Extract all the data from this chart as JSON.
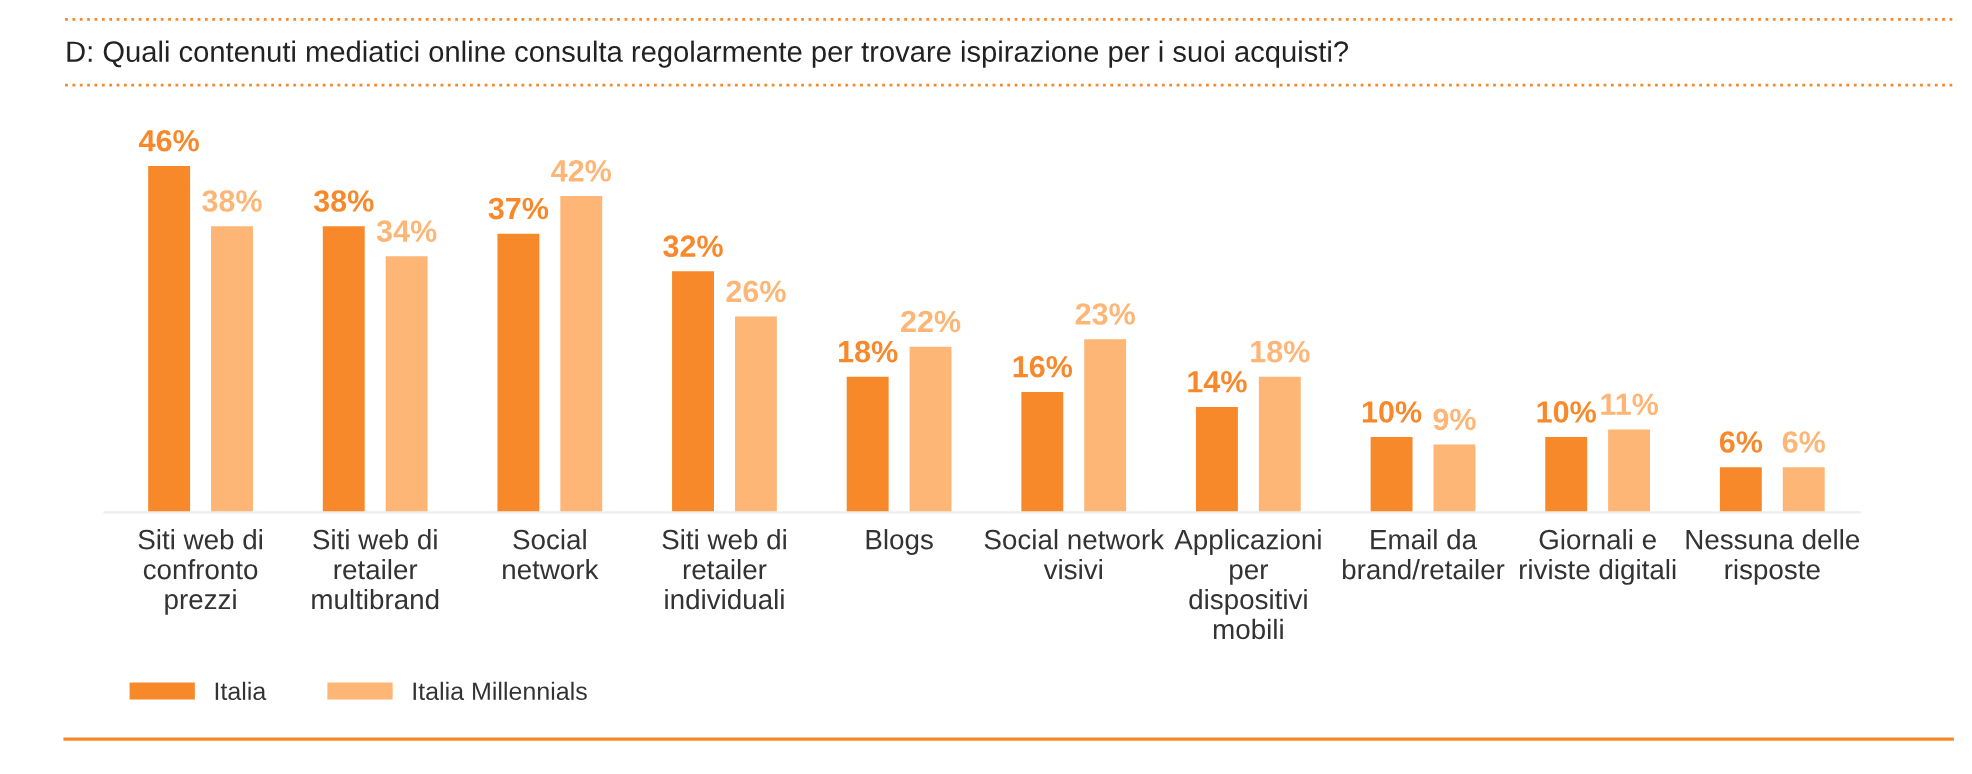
{
  "chart_data": {
    "type": "bar",
    "title": "D: Quali contenuti mediatici online consulta regolarmente per trovare ispirazione per i suoi acquisti?",
    "categories": [
      "Siti web di\nconfronto\nprezzi",
      "Siti web di\nretailer\nmultibrand",
      "Social\nnetwork",
      "Siti web di\nretailer\nindividuali",
      "Blogs",
      "Social network\nvisivi",
      "Applicazioni\nper\ndispositivi\nmobili",
      "Email da\nbrand/retailer",
      "Giornali e\nriviste digitali",
      "Nessuna delle\nrisposte"
    ],
    "series": [
      {
        "name": "Italia",
        "color": "#f7892b",
        "values": [
          46,
          38,
          37,
          32,
          18,
          16,
          14,
          10,
          10,
          6
        ],
        "value_labels": [
          "46%",
          "38%",
          "37%",
          "32%",
          "18%",
          "16%",
          "14%",
          "10%",
          "10%",
          "6%"
        ]
      },
      {
        "name": "Italia Millennials",
        "color": "#fdb676",
        "values": [
          38,
          34,
          42,
          26,
          22,
          23,
          18,
          9,
          11,
          6
        ],
        "value_labels": [
          "38%",
          "34%",
          "42%",
          "26%",
          "22%",
          "23%",
          "18%",
          "9%",
          "11%",
          "6%"
        ]
      }
    ],
    "legend": "bottom left",
    "grid": false
  }
}
